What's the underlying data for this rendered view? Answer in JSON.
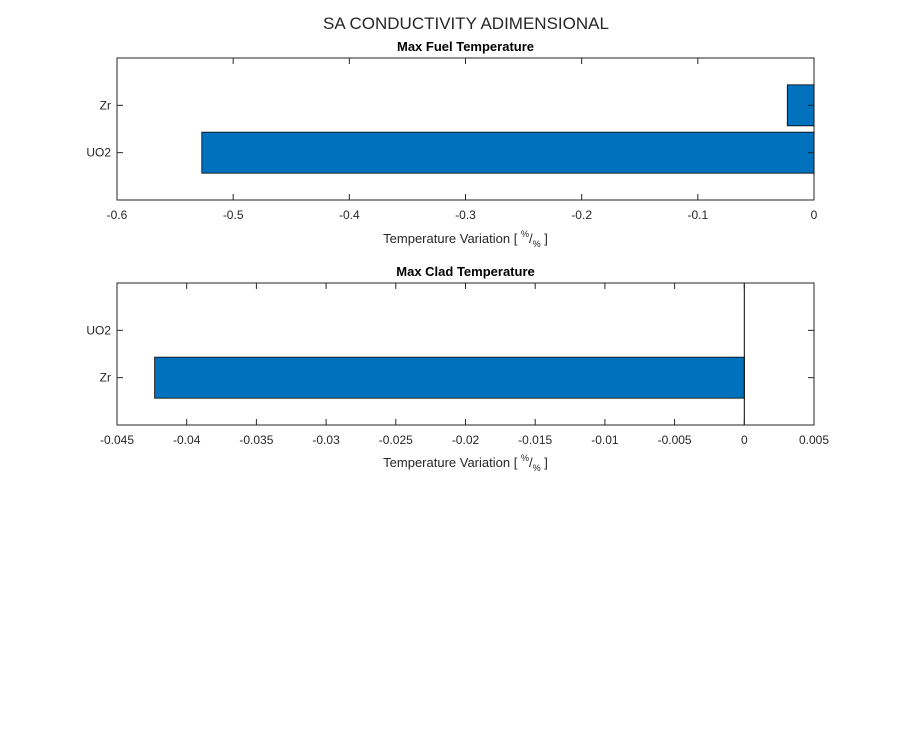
{
  "figure": {
    "suptitle": "SA CONDUCTIVITY ADIMENSIONAL"
  },
  "colors": {
    "bar_fill": "#0072BD",
    "bar_edge": "#000000",
    "axis": "#262626",
    "background": "#ffffff"
  },
  "chart_data": [
    {
      "type": "bar",
      "orientation": "horizontal",
      "title": "Max Fuel Temperature",
      "xlabel": {
        "prefix": "Temperature Variation [",
        "unit_num": "%",
        "unit_sep": "/",
        "unit_den": "%",
        "suffix": "]"
      },
      "ylabel": "",
      "categories": [
        "UO2",
        "Zr"
      ],
      "values": [
        -0.527,
        -0.023
      ],
      "xlim": [
        -0.6,
        0
      ],
      "xticks": [
        -0.6,
        -0.5,
        -0.4,
        -0.3,
        -0.2,
        -0.1,
        0
      ],
      "xtick_labels": [
        "-0.6",
        "-0.5",
        "-0.4",
        "-0.3",
        "-0.2",
        "-0.1",
        "0"
      ],
      "grid": false,
      "legend": "none"
    },
    {
      "type": "bar",
      "orientation": "horizontal",
      "title": "Max Clad Temperature",
      "xlabel": {
        "prefix": "Temperature Variation [",
        "unit_num": "%",
        "unit_sep": "/",
        "unit_den": "%",
        "suffix": "]"
      },
      "ylabel": "",
      "categories": [
        "Zr",
        "UO2"
      ],
      "values": [
        -0.0423,
        0
      ],
      "xlim": [
        -0.045,
        0.005
      ],
      "xticks": [
        -0.045,
        -0.04,
        -0.035,
        -0.03,
        -0.025,
        -0.02,
        -0.015,
        -0.01,
        -0.005,
        0,
        0.005
      ],
      "xtick_labels": [
        "-0.045",
        "-0.04",
        "-0.035",
        "-0.03",
        "-0.025",
        "-0.02",
        "-0.015",
        "-0.01",
        "-0.005",
        "0",
        "0.005"
      ],
      "grid": false,
      "legend": "none"
    }
  ]
}
